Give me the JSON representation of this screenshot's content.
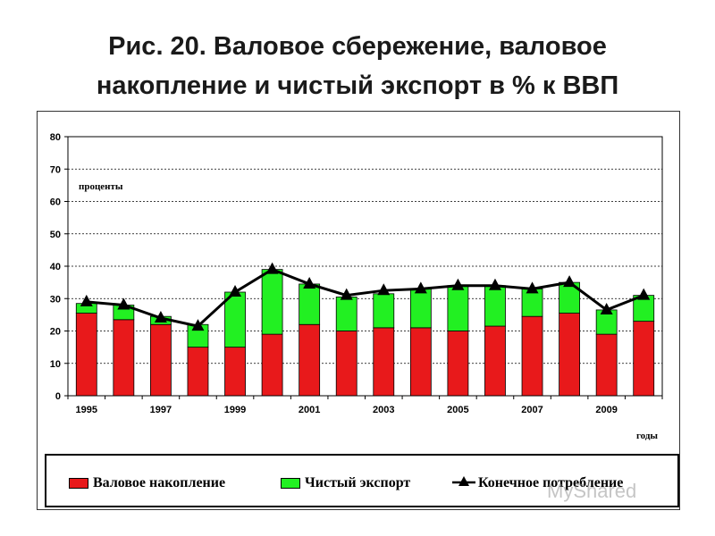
{
  "title": {
    "line1": "Рис. 20. Валовое сбережение, валовое",
    "line2": "накопление и чистый экспорт в % к ВВП"
  },
  "colors": {
    "accumulation": "#e8191b",
    "net_export": "#22f022",
    "line": "#000000"
  },
  "watermark_text": "MyShared",
  "chart_data": {
    "type": "bar",
    "stacked": true,
    "title": "Рис. 20. Валовое сбережение, валовое накопление и чистый экспорт в % к ВВП",
    "ylabel": "проценты",
    "xlabel": "годы",
    "ylim": [
      0,
      80
    ],
    "yticks": [
      0,
      10,
      20,
      30,
      40,
      50,
      60,
      70,
      80
    ],
    "grid": "horizontal-dashed",
    "legend_position": "bottom",
    "categories": [
      "1995",
      "1996",
      "1997",
      "1998",
      "1999",
      "2000",
      "2001",
      "2002",
      "2003",
      "2004",
      "2005",
      "2006",
      "2007",
      "2008",
      "2009",
      "2010"
    ],
    "xtick_labels": [
      "1995",
      "1997",
      "1999",
      "2001",
      "2003",
      "2005",
      "2007",
      "2009"
    ],
    "series": [
      {
        "name": "Валовое накопление",
        "kind": "bar",
        "values": [
          25.5,
          23.5,
          22,
          15,
          15,
          19,
          22,
          20,
          21,
          21,
          20,
          21.5,
          24.5,
          25.5,
          19,
          23
        ]
      },
      {
        "name": "Чистый экспорт",
        "kind": "bar-stacked",
        "values": [
          3,
          4.5,
          2.5,
          7,
          17,
          20,
          12.5,
          10.5,
          10.5,
          12,
          14,
          12.5,
          8.5,
          9.5,
          7.5,
          8
        ]
      },
      {
        "name": "Конечное потребление",
        "kind": "line-triangle",
        "values": [
          29,
          28,
          24,
          21.5,
          32,
          39,
          34.5,
          31,
          32.5,
          33,
          34,
          34,
          33,
          35,
          26.5,
          31
        ]
      }
    ]
  },
  "legend": [
    {
      "label": "Валовое накопление",
      "swatch": "#e8191b"
    },
    {
      "label": "Чистый экспорт",
      "swatch": "#22f022"
    },
    {
      "label": "Конечное потребление",
      "swatch": "line"
    }
  ]
}
